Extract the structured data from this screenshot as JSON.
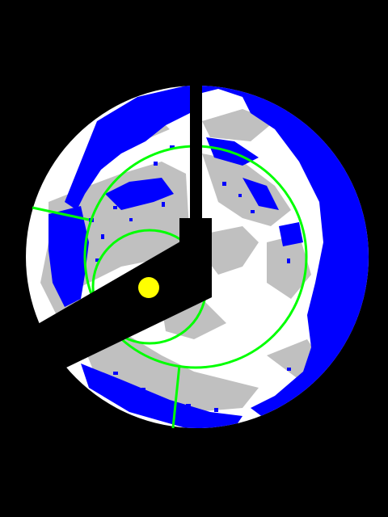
{
  "view": {
    "kind": "all-sky cloud camera image",
    "colors": {
      "background": "#000000",
      "clear_sky": "#0000ff",
      "thin_cloud": "#c0c0c0",
      "thick_cloud": "#ffffff",
      "grid": "#00ff00",
      "sun": "#ffff00",
      "shadowband": "#000000"
    },
    "sun_marker": {
      "shape": "circle"
    },
    "overlay": {
      "grid_rings": 2,
      "radial_grid_lines": 2
    }
  }
}
